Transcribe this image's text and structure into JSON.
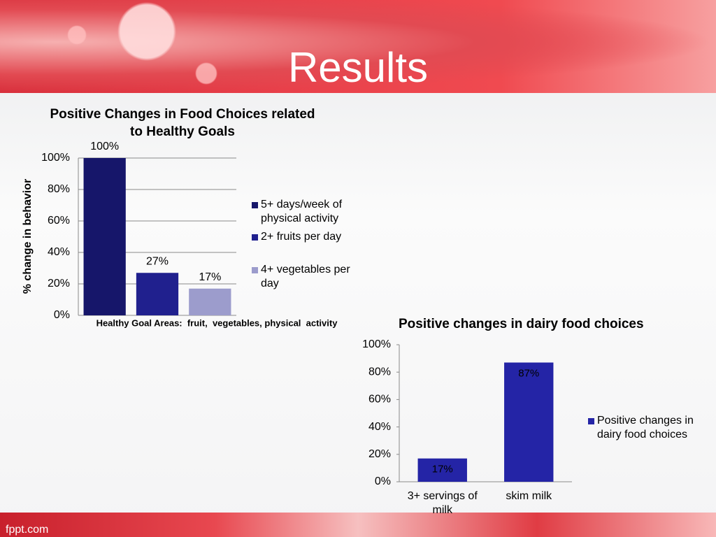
{
  "title": "Results",
  "footer": "fppt.com",
  "chart_data": [
    {
      "type": "bar",
      "title": "Positive Changes in Food Choices related to Healthy Goals",
      "ylabel": "% change in behavior",
      "xlabel": "Healthy Goal Areas:  fruit,  vegetables, physical  activity",
      "categories": [
        null
      ],
      "series": [
        {
          "name": "5+ days/week of physical activity",
          "color": "#16166a",
          "values": [
            100
          ],
          "value_labels": [
            "100%"
          ]
        },
        {
          "name": "2+ fruits per day",
          "color": "#20208e",
          "values": [
            27
          ],
          "value_labels": [
            "27%"
          ]
        },
        {
          "name": "4+ vegetables per day",
          "color": "#9c9ccc",
          "values": [
            17
          ],
          "value_labels": [
            "17%"
          ]
        }
      ],
      "ylim": [
        0,
        100
      ],
      "yticks": [
        {
          "value": 0,
          "label": "0%"
        },
        {
          "value": 20,
          "label": "20%"
        },
        {
          "value": 40,
          "label": "40%"
        },
        {
          "value": 60,
          "label": "60%"
        },
        {
          "value": 80,
          "label": "80%"
        },
        {
          "value": 100,
          "label": "100%"
        }
      ],
      "grid": true
    },
    {
      "type": "bar",
      "title": "Positive changes in dairy food choices",
      "categories": [
        "3+ servings of milk",
        "skim milk"
      ],
      "series": [
        {
          "name": "Positive changes in dairy food choices",
          "color": "#2424a6",
          "values": [
            17,
            87
          ],
          "value_labels": [
            "17%",
            "87%"
          ]
        }
      ],
      "ylim": [
        0,
        100
      ],
      "yticks": [
        {
          "value": 0,
          "label": "0%"
        },
        {
          "value": 20,
          "label": "20%"
        },
        {
          "value": 40,
          "label": "40%"
        },
        {
          "value": 60,
          "label": "60%"
        },
        {
          "value": 80,
          "label": "80%"
        },
        {
          "value": 100,
          "label": "100%"
        }
      ],
      "grid": false
    }
  ]
}
